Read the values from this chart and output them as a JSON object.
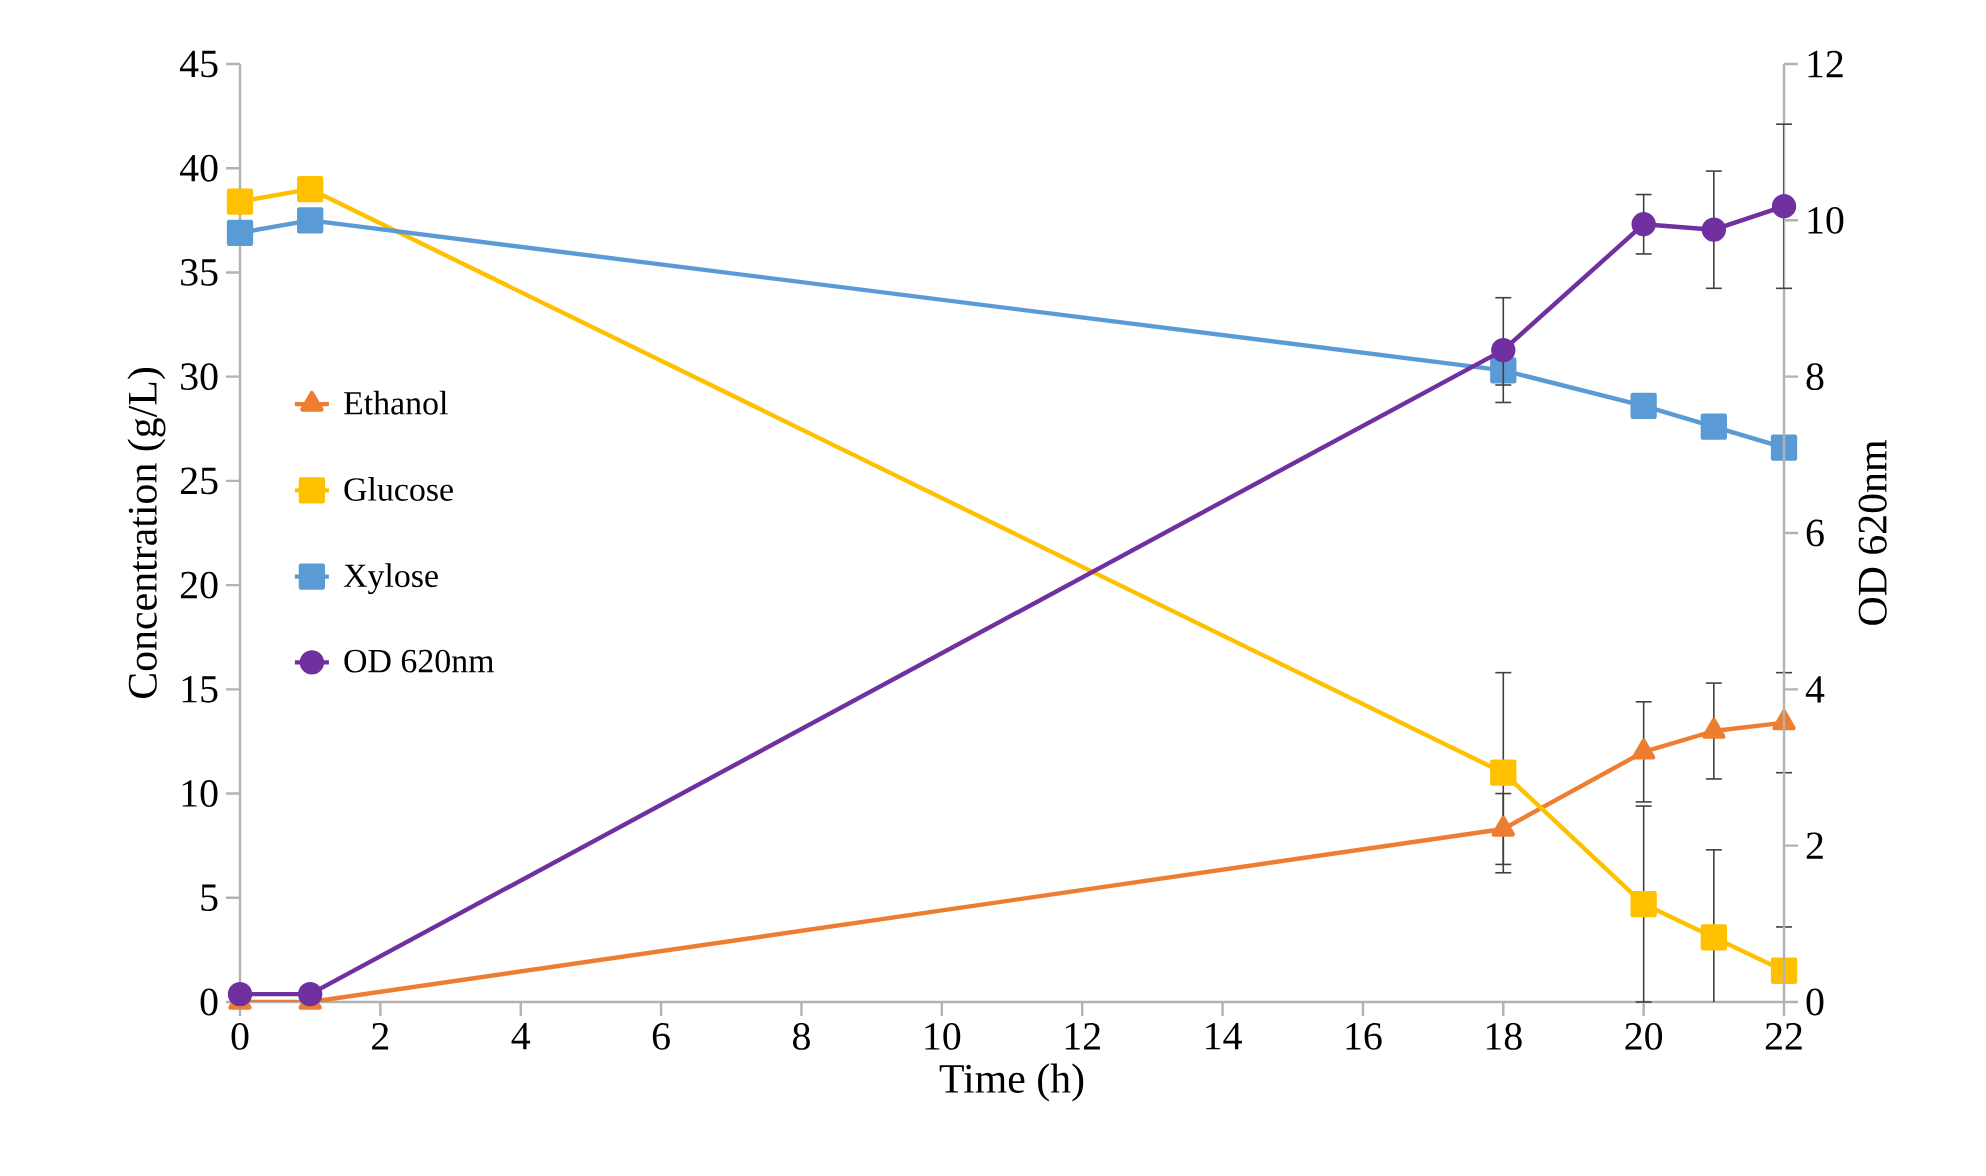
{
  "chart_data": {
    "type": "line",
    "xlabel": "Time (h)",
    "ylabel": "Concentration (g/L)",
    "y2label": "OD 620nm",
    "x": [
      0,
      1,
      18,
      20,
      21,
      22
    ],
    "series": [
      {
        "name": "Ethanol",
        "color": "#ed7d31",
        "marker": "triangle",
        "values": [
          0,
          0,
          8.3,
          12.0,
          13.0,
          13.4
        ],
        "errors": [
          null,
          null,
          1.7,
          2.4,
          2.3,
          2.4
        ]
      },
      {
        "name": "Glucose",
        "color": "#ffc000",
        "marker": "square",
        "values": [
          38.4,
          39.0,
          11.0,
          4.7,
          3.1,
          1.5
        ],
        "errors": [
          null,
          null,
          4.8,
          4.7,
          4.2,
          2.1
        ]
      },
      {
        "name": "Xylose",
        "color": "#5b9bd5",
        "marker": "square",
        "values": [
          36.9,
          37.5,
          30.3,
          28.6,
          27.6,
          26.6
        ],
        "errors": [
          null,
          null,
          0.7,
          null,
          null,
          null
        ]
      },
      {
        "name": "OD 620nm",
        "color": "#7030a0",
        "marker": "circle",
        "axis": "y2",
        "values": [
          0.1,
          0.1,
          8.34,
          9.95,
          9.88,
          10.18
        ],
        "errors": [
          null,
          null,
          0.67,
          0.38,
          0.75,
          1.05
        ]
      }
    ],
    "xlim": [
      0,
      22
    ],
    "xticks": [
      0,
      2,
      4,
      6,
      8,
      10,
      12,
      14,
      16,
      18,
      20,
      22
    ],
    "ylim": [
      0,
      45
    ],
    "yticks": [
      0,
      5,
      10,
      15,
      20,
      25,
      30,
      35,
      40,
      45
    ],
    "y2lim": [
      0,
      12
    ],
    "y2ticks": [
      0,
      2,
      4,
      6,
      8,
      10,
      12
    ],
    "grid": false,
    "legend": "left",
    "line_style": "solid"
  }
}
